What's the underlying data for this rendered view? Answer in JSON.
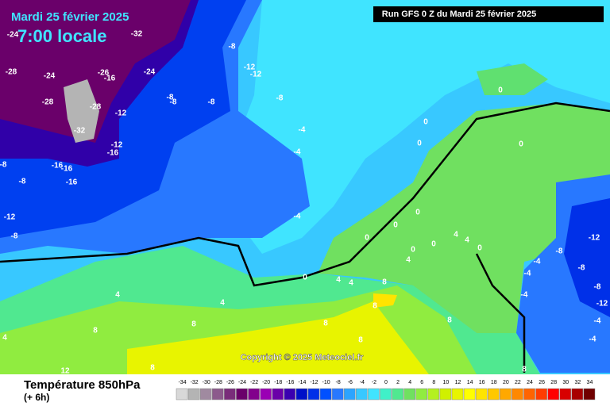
{
  "header": {
    "title": "Mardi 25 février 2025",
    "subtitle": "7:00 locale",
    "run": "Run GFS 0 Z du Mardi 25 février 2025"
  },
  "copyright": "Copyright © 2025 Meteociel.fr",
  "footer": {
    "title": "Température 850hPa",
    "subtitle": "(+ 6h)"
  },
  "map": {
    "contour_labels": [
      -32,
      -24,
      -28,
      -24,
      -26,
      -16,
      -24,
      -28,
      -28,
      -12,
      -32,
      -12,
      -16,
      -16,
      -16,
      -16,
      -8,
      -8,
      -12,
      -8,
      -8,
      -12,
      -12,
      -8,
      -8,
      -8,
      -8,
      -4,
      -4,
      -4,
      0,
      0,
      0,
      0,
      0,
      0,
      0,
      0,
      4,
      4,
      8,
      8,
      4,
      4,
      8,
      8,
      8,
      4,
      8,
      8,
      12,
      8,
      8,
      -4,
      -12,
      -8,
      -8,
      -4,
      -4,
      -4,
      -8,
      -4,
      4,
      4,
      0,
      0,
      0,
      4,
      -12
    ]
  },
  "legend": {
    "values": [
      -34,
      -32,
      -30,
      -28,
      -26,
      -24,
      -22,
      -20,
      -18,
      -16,
      -14,
      -12,
      -10,
      -8,
      -6,
      -4,
      -2,
      0,
      2,
      4,
      6,
      8,
      10,
      12,
      14,
      16,
      18,
      20,
      22,
      24,
      26,
      28,
      30,
      32,
      34
    ],
    "colors": [
      "#d8d8d8",
      "#b4b4b4",
      "#a08aa0",
      "#8c5a8c",
      "#7a2c7a",
      "#6a006a",
      "#82008c",
      "#9a00b4",
      "#6a00a8",
      "#3a00b0",
      "#0010c8",
      "#0030e8",
      "#0050ff",
      "#2878ff",
      "#2ca4ff",
      "#38c8ff",
      "#40e4ff",
      "#40f0c8",
      "#50e890",
      "#70e060",
      "#90ec40",
      "#b4f020",
      "#d0f000",
      "#e8f400",
      "#ffff00",
      "#ffe400",
      "#ffc800",
      "#ffa800",
      "#ff8800",
      "#ff6400",
      "#ff3c00",
      "#ff0000",
      "#d80000",
      "#a80000",
      "#700000"
    ]
  }
}
